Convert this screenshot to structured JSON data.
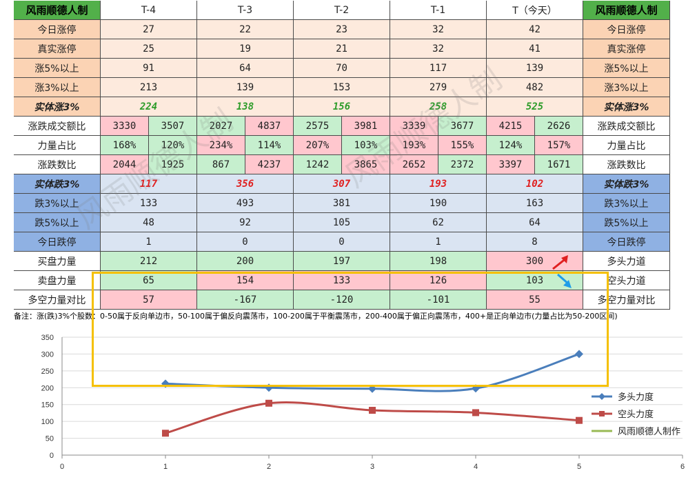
{
  "table": {
    "corner_label": "风雨顺德人制",
    "right_header": "风雨顺德人制",
    "columns": [
      "T-4",
      "T-3",
      "T-2",
      "T-1",
      "T（今天）"
    ],
    "rows": [
      {
        "label": "今日涨停",
        "values": [
          "27",
          "22",
          "23",
          "32",
          "42"
        ]
      },
      {
        "label": "真实涨停",
        "values": [
          "25",
          "19",
          "21",
          "32",
          "41"
        ]
      },
      {
        "label": "涨5%以上",
        "values": [
          "91",
          "64",
          "70",
          "117",
          "139"
        ]
      },
      {
        "label": "涨3%以上",
        "values": [
          "213",
          "139",
          "153",
          "279",
          "482"
        ]
      },
      {
        "label": "实体涨3%",
        "values": [
          "224",
          "138",
          "156",
          "258",
          "525"
        ]
      },
      {
        "label": "涨跌成交额比",
        "pairs": [
          [
            "3330",
            "3507"
          ],
          [
            "2027",
            "4837"
          ],
          [
            "2575",
            "3981"
          ],
          [
            "3339",
            "3677"
          ],
          [
            "4215",
            "2626"
          ]
        ]
      },
      {
        "label": "力量占比",
        "pairs": [
          [
            "168%",
            "120%"
          ],
          [
            "234%",
            "114%"
          ],
          [
            "207%",
            "103%"
          ],
          [
            "193%",
            "155%"
          ],
          [
            "124%",
            "157%"
          ]
        ]
      },
      {
        "label": "涨跌数比",
        "pairs": [
          [
            "2044",
            "1925"
          ],
          [
            "867",
            "4237"
          ],
          [
            "1242",
            "3865"
          ],
          [
            "2652",
            "2372"
          ],
          [
            "3397",
            "1671"
          ]
        ]
      },
      {
        "label": "实体跌3%",
        "values": [
          "117",
          "356",
          "307",
          "193",
          "102"
        ]
      },
      {
        "label": "跌3%以上",
        "values": [
          "133",
          "493",
          "381",
          "190",
          "163"
        ]
      },
      {
        "label": "跌5%以上",
        "values": [
          "48",
          "92",
          "105",
          "62",
          "64"
        ]
      },
      {
        "label": "今日跌停",
        "values": [
          "1",
          "0",
          "0",
          "1",
          "8"
        ]
      },
      {
        "label": "买盘力量",
        "right_label": "多头力道",
        "values": [
          "212",
          "200",
          "197",
          "198",
          "300"
        ]
      },
      {
        "label": "卖盘力量",
        "right_label": "空头力道",
        "values": [
          "65",
          "154",
          "133",
          "126",
          "103"
        ]
      },
      {
        "label": "多空力量对比",
        "right_label": "多空力量对比",
        "values": [
          "57",
          "-167",
          "-120",
          "-101",
          "55"
        ]
      }
    ],
    "note": "备注：涨(跌)3%个股数：0-50属于反向单边市，50-100属于偏反向震荡市，100-200属于平衡震荡市，200-400属于偏正向震荡市，400+是正向单边市(力量占比为50-200区间)",
    "watermark": "风雨顺德人制"
  },
  "chart_data": {
    "type": "line",
    "x_ticks": [
      "0",
      "1",
      "2",
      "3",
      "4",
      "5",
      "6"
    ],
    "y_ticks": [
      "0",
      "50",
      "100",
      "150",
      "200",
      "250",
      "300",
      "350"
    ],
    "xlim": [
      0,
      6
    ],
    "ylim": [
      0,
      350
    ],
    "grid": "horizontal",
    "legend_position": "right",
    "series": [
      {
        "name": "多头力度",
        "color": "#4a7ebb",
        "marker": "diamond",
        "x": [
          1,
          2,
          3,
          4,
          5
        ],
        "y": [
          212,
          200,
          197,
          198,
          300
        ]
      },
      {
        "name": "空头力度",
        "color": "#be4b48",
        "marker": "square",
        "x": [
          1,
          2,
          3,
          4,
          5
        ],
        "y": [
          65,
          154,
          133,
          126,
          103
        ]
      },
      {
        "name": "风雨顺德人制作",
        "color": "#98b954",
        "marker": "none",
        "x": [],
        "y": []
      }
    ]
  }
}
